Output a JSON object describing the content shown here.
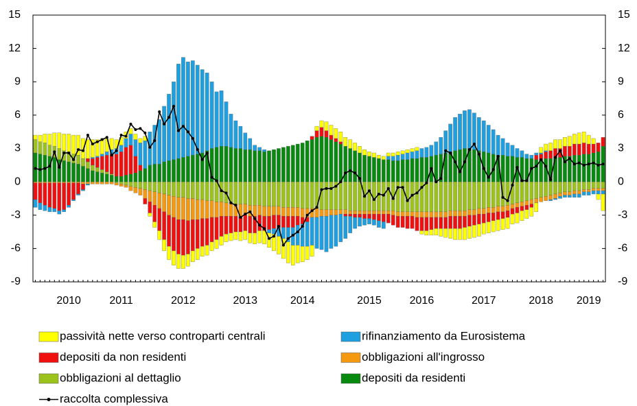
{
  "chart_data": {
    "type": "bar",
    "stacked": true,
    "categories": [
      null,
      null,
      null,
      null,
      null,
      null,
      null,
      "2010",
      null,
      null,
      null,
      null,
      null,
      null,
      null,
      null,
      null,
      null,
      "2011",
      null,
      null,
      null,
      null,
      null,
      null,
      null,
      null,
      null,
      null,
      null,
      null,
      "2012",
      null,
      null,
      null,
      null,
      null,
      null,
      null,
      null,
      null,
      null,
      null,
      null,
      "2013",
      null,
      null,
      null,
      null,
      null,
      null,
      null,
      null,
      null,
      null,
      null,
      "2014",
      null,
      null,
      null,
      null,
      null,
      null,
      null,
      null,
      null,
      null,
      null,
      null,
      null,
      "2015",
      null,
      null,
      null,
      null,
      null,
      null,
      null,
      null,
      null,
      null,
      "2016",
      null,
      null,
      null,
      null,
      null,
      null,
      null,
      null,
      null,
      null,
      null,
      null,
      "2017",
      null,
      null,
      null,
      null,
      null,
      null,
      null,
      null,
      null,
      null,
      null,
      "2018",
      null,
      null,
      null,
      null,
      null,
      null,
      null,
      null,
      null,
      "2019",
      null,
      null,
      null
    ],
    "ylim": [
      -9,
      15
    ],
    "yticks": [
      -9,
      -6,
      -3,
      0,
      3,
      6,
      9,
      12,
      15
    ],
    "series": [
      {
        "name": "passività nette verso controparti centrali",
        "color": "#ffff00",
        "values": [
          0.4,
          0.6,
          0.8,
          1.0,
          1.2,
          1.4,
          1.5,
          1.6,
          1.7,
          1.8,
          1.8,
          1.7,
          1.6,
          1.5,
          1.4,
          1.2,
          1.0,
          0.8,
          0.7,
          0.6,
          0.5,
          0.5,
          0.4,
          0.4,
          -0.3,
          -0.5,
          -0.8,
          -1.0,
          -1.2,
          -1.3,
          -1.3,
          -1.2,
          -1.1,
          -1.0,
          -1.0,
          -0.9,
          -0.9,
          -0.8,
          -0.8,
          -0.8,
          -0.7,
          -0.7,
          -0.7,
          -0.8,
          -0.8,
          -0.9,
          -1.0,
          -1.1,
          -1.2,
          -1.3,
          -1.5,
          -1.6,
          -1.8,
          -1.9,
          -1.8,
          -1.6,
          -1.4,
          -1.2,
          -1.0,
          0.4,
          0.6,
          0.8,
          0.9,
          0.9,
          0.9,
          0.8,
          0.8,
          0.7,
          0.6,
          0.5,
          0.4,
          0.4,
          0.3,
          0.3,
          0.3,
          0.3,
          0.3,
          0.3,
          0.3,
          0.3,
          0.3,
          -0.3,
          -0.4,
          -0.5,
          -0.6,
          -0.7,
          -0.8,
          -0.9,
          -1.0,
          -1.0,
          -1.1,
          -1.1,
          -1.1,
          -1.1,
          -1.0,
          -1.0,
          -1.0,
          -1.0,
          -1.0,
          -1.0,
          -0.9,
          -0.9,
          -0.9,
          -0.8,
          -0.8,
          -0.8,
          0.5,
          0.6,
          0.7,
          0.8,
          0.8,
          0.8,
          0.9,
          0.9,
          1.0,
          1.0,
          0.8,
          0.5,
          -0.5,
          -1.5
        ]
      },
      {
        "name": "rifinanziamento da Eurosistema",
        "color": "#1ea0e0",
        "values": [
          -0.7,
          -0.6,
          -0.5,
          -0.4,
          -0.3,
          -0.3,
          -0.2,
          -0.2,
          -0.1,
          -0.1,
          -0.1,
          -0.1,
          0.1,
          0.1,
          0.2,
          0.3,
          0.4,
          0.5,
          0.6,
          0.8,
          1.0,
          1.5,
          2.0,
          2.5,
          3.0,
          3.5,
          4.0,
          5.0,
          6.0,
          7.0,
          8.5,
          9.0,
          8.5,
          8.5,
          8.0,
          7.5,
          7.0,
          6.0,
          5.0,
          5.0,
          4.0,
          3.0,
          2.5,
          2.0,
          1.5,
          1.0,
          0.5,
          0.3,
          0.2,
          -0.3,
          -0.5,
          -0.8,
          -1.0,
          -1.3,
          -1.6,
          -1.8,
          -2.0,
          -2.2,
          -2.5,
          -2.8,
          -3.0,
          -3.2,
          -3.0,
          -2.8,
          -2.5,
          -2.0,
          -1.5,
          -1.0,
          -0.8,
          -0.6,
          -0.5,
          -0.5,
          -0.6,
          -0.6,
          0.3,
          0.4,
          0.5,
          0.5,
          0.6,
          0.6,
          0.7,
          0.8,
          0.9,
          1.0,
          1.2,
          1.5,
          2.0,
          2.5,
          3.0,
          3.2,
          3.4,
          3.5,
          3.3,
          3.0,
          2.8,
          2.5,
          2.2,
          1.8,
          1.5,
          1.2,
          1.0,
          0.8,
          0.6,
          0.4,
          0.3,
          0.2,
          0.1,
          0.1,
          -0.1,
          -0.1,
          -0.2,
          -0.2,
          -0.2,
          -0.3,
          -0.3,
          -0.3,
          -0.3,
          -0.3,
          -0.3,
          -0.3
        ]
      },
      {
        "name": "depositi da non residenti",
        "color": "#f01010",
        "values": [
          -1.5,
          -1.8,
          -2.0,
          -2.2,
          -2.3,
          -2.5,
          -2.4,
          -2.0,
          -1.5,
          -1.0,
          -0.5,
          0.3,
          0.6,
          0.9,
          1.2,
          1.5,
          1.8,
          2.0,
          2.2,
          2.5,
          2.6,
          1.5,
          0.5,
          -0.5,
          -1.0,
          -1.5,
          -2.0,
          -2.5,
          -2.8,
          -3.0,
          -3.1,
          -3.2,
          -3.0,
          -2.8,
          -2.6,
          -2.5,
          -2.4,
          -2.2,
          -2.0,
          -1.8,
          -1.6,
          -1.5,
          -1.4,
          -1.4,
          -1.4,
          -1.5,
          -1.5,
          -1.4,
          -1.3,
          -1.2,
          -1.2,
          -1.1,
          -1.0,
          -1.0,
          -1.0,
          -0.8,
          -0.6,
          -0.4,
          0.3,
          0.6,
          0.8,
          0.6,
          0.4,
          0.3,
          0.2,
          -0.2,
          -0.2,
          -0.3,
          -0.3,
          -0.4,
          -0.4,
          -0.5,
          -0.6,
          -0.7,
          -0.8,
          -0.9,
          -1.0,
          -1.0,
          -1.1,
          -1.1,
          -1.2,
          -1.2,
          -1.2,
          -1.1,
          -1.0,
          -1.0,
          -1.0,
          -1.1,
          -1.1,
          -1.1,
          -1.0,
          -1.0,
          -0.9,
          -0.9,
          -0.8,
          -0.8,
          -0.7,
          -0.7,
          -0.6,
          -0.6,
          -0.5,
          -0.5,
          -0.4,
          -0.4,
          -0.3,
          0.4,
          0.5,
          0.6,
          0.7,
          0.8,
          0.8,
          0.9,
          0.9,
          1.0,
          1.0,
          1.0,
          0.9,
          0.8,
          0.8,
          0.8
        ]
      },
      {
        "name": "obbligazioni all'ingrosso",
        "color": "#f59a10",
        "values": [
          -0.1,
          -0.1,
          -0.1,
          -0.1,
          -0.1,
          -0.1,
          -0.1,
          -0.1,
          -0.1,
          -0.1,
          -0.2,
          -0.2,
          -0.2,
          -0.2,
          -0.2,
          -0.2,
          -0.2,
          -0.2,
          -0.2,
          -0.2,
          -0.4,
          -0.5,
          -0.6,
          -0.8,
          -1.0,
          -1.2,
          -1.4,
          -1.6,
          -1.8,
          -1.9,
          -2.0,
          -2.0,
          -2.0,
          -1.9,
          -1.8,
          -1.7,
          -1.6,
          -1.5,
          -1.4,
          -1.3,
          -1.2,
          -1.2,
          -1.1,
          -1.1,
          -1.0,
          -1.0,
          -1.0,
          -0.9,
          -0.9,
          -0.9,
          -0.8,
          -0.8,
          -0.8,
          -0.8,
          -0.8,
          -0.8,
          -0.8,
          -0.8,
          -0.8,
          -0.8,
          -0.6,
          -0.6,
          -0.5,
          -0.5,
          -0.4,
          -0.4,
          -0.3,
          -0.3,
          -0.3,
          -0.3,
          -0.3,
          -0.3,
          -0.3,
          -0.3,
          -0.3,
          -0.4,
          -0.4,
          -0.4,
          -0.4,
          -0.4,
          -0.5,
          -0.5,
          -0.5,
          -0.5,
          -0.5,
          -0.5,
          -0.5,
          -0.5,
          -0.5,
          -0.5,
          -0.5,
          -0.5,
          -0.5,
          -0.5,
          -0.5,
          -0.5,
          -0.5,
          -0.5,
          -0.5,
          -0.5,
          -0.4,
          -0.4,
          -0.4,
          -0.4,
          -0.4,
          -0.4,
          -0.4,
          -0.4,
          -0.4,
          -0.4,
          -0.3,
          -0.3,
          -0.3,
          -0.3,
          -0.3,
          -0.2,
          -0.2,
          -0.2,
          -0.2,
          -0.2
        ]
      },
      {
        "name": "obbligazioni al dettaglio",
        "color": "#9cc31c",
        "values": [
          1.2,
          1.1,
          1.1,
          1.0,
          1.0,
          1.0,
          0.9,
          0.9,
          0.8,
          0.8,
          0.7,
          0.6,
          0.5,
          0.4,
          0.3,
          0.2,
          0.1,
          -0.1,
          -0.2,
          -0.3,
          -0.4,
          -0.5,
          -0.6,
          -0.7,
          -0.8,
          -0.9,
          -1.0,
          -1.1,
          -1.2,
          -1.3,
          -1.4,
          -1.4,
          -1.5,
          -1.5,
          -1.6,
          -1.6,
          -1.7,
          -1.7,
          -1.8,
          -1.8,
          -1.9,
          -1.9,
          -2.0,
          -2.0,
          -2.0,
          -2.1,
          -2.1,
          -2.1,
          -2.2,
          -2.2,
          -2.2,
          -2.2,
          -2.3,
          -2.3,
          -2.3,
          -2.3,
          -2.4,
          -2.4,
          -2.4,
          -2.4,
          -2.5,
          -2.5,
          -2.5,
          -2.5,
          -2.5,
          -2.5,
          -2.6,
          -2.6,
          -2.6,
          -2.6,
          -2.6,
          -2.6,
          -2.6,
          -2.6,
          -2.6,
          -2.6,
          -2.7,
          -2.7,
          -2.7,
          -2.7,
          -2.7,
          -2.7,
          -2.7,
          -2.7,
          -2.7,
          -2.7,
          -2.7,
          -2.6,
          -2.6,
          -2.6,
          -2.6,
          -2.5,
          -2.5,
          -2.4,
          -2.4,
          -2.3,
          -2.3,
          -2.2,
          -2.2,
          -2.1,
          -2.0,
          -1.9,
          -1.8,
          -1.7,
          -1.6,
          -1.5,
          -1.4,
          -1.3,
          -1.2,
          -1.1,
          -1.0,
          -0.9,
          -0.9,
          -0.8,
          -0.8,
          -0.7,
          -0.7,
          -0.6,
          -0.6,
          -0.6
        ]
      },
      {
        "name": "depositi da residenti",
        "color": "#088a10",
        "values": [
          2.6,
          2.5,
          2.4,
          2.3,
          2.2,
          2.0,
          1.9,
          1.8,
          1.7,
          1.6,
          1.4,
          1.2,
          1.0,
          0.9,
          0.8,
          0.7,
          0.6,
          0.5,
          0.5,
          0.6,
          0.7,
          0.8,
          1.0,
          1.2,
          1.5,
          1.6,
          1.6,
          1.8,
          1.9,
          2.0,
          2.1,
          2.2,
          2.3,
          2.4,
          2.5,
          2.6,
          2.8,
          3.0,
          3.1,
          3.2,
          3.2,
          3.1,
          3.0,
          3.0,
          2.9,
          2.9,
          2.8,
          2.8,
          2.7,
          2.8,
          2.9,
          3.0,
          3.1,
          3.2,
          3.3,
          3.4,
          3.5,
          3.7,
          3.8,
          4.0,
          4.1,
          4.0,
          3.8,
          3.6,
          3.4,
          3.2,
          3.0,
          2.8,
          2.6,
          2.4,
          2.3,
          2.2,
          2.1,
          2.0,
          2.0,
          1.9,
          1.9,
          2.0,
          2.0,
          2.1,
          2.1,
          2.2,
          2.2,
          2.3,
          2.4,
          2.5,
          2.6,
          2.7,
          2.8,
          2.9,
          3.0,
          3.0,
          2.9,
          2.8,
          2.7,
          2.6,
          2.5,
          2.4,
          2.4,
          2.3,
          2.3,
          2.2,
          2.2,
          2.1,
          2.1,
          2.0,
          2.0,
          2.1,
          2.1,
          2.2,
          2.2,
          2.3,
          2.3,
          2.4,
          2.4,
          2.5,
          2.5,
          2.6,
          2.7,
          3.2
        ]
      },
      {
        "name": "raccolta complessiva",
        "type": "line",
        "color": "#000000",
        "values": [
          1.2,
          1.1,
          1.2,
          1.4,
          2.7,
          1.3,
          2.6,
          2.6,
          2.0,
          2.9,
          2.8,
          4.2,
          3.4,
          3.6,
          3.8,
          4.0,
          2.4,
          2.8,
          4.2,
          4.1,
          5.2,
          4.7,
          4.8,
          4.4,
          3.1,
          3.7,
          6.3,
          5.2,
          5.8,
          6.8,
          4.6,
          5.0,
          4.5,
          3.9,
          2.9,
          2.0,
          2.6,
          0.4,
          0.1,
          -0.8,
          -1.0,
          -1.9,
          -2.1,
          -3.2,
          -2.9,
          -2.7,
          -3.3,
          -3.9,
          -4.2,
          -5.1,
          -4.9,
          -4.0,
          -5.7,
          -5.1,
          -4.8,
          -4.5,
          -4.0,
          -3.0,
          -2.6,
          -2.3,
          -0.7,
          -0.6,
          -0.6,
          -0.4,
          0.0,
          0.8,
          1.0,
          0.8,
          0.3,
          -1.3,
          -0.8,
          -1.6,
          -1.1,
          -1.2,
          -0.6,
          -1.5,
          -0.5,
          -0.5,
          -1.7,
          -1.2,
          -1.0,
          -0.5,
          -0.1,
          1.2,
          0.0,
          0.3,
          2.8,
          2.6,
          1.8,
          0.9,
          1.8,
          2.9,
          3.4,
          2.5,
          1.2,
          0.4,
          1.1,
          2.3,
          -1.4,
          -1.7,
          -0.3,
          1.3,
          0.1,
          0.1,
          1.2,
          1.4,
          2.0,
          1.4,
          0.2,
          2.2,
          2.8,
          1.8,
          2.1,
          1.6,
          1.7,
          1.5,
          1.6,
          1.7,
          1.5,
          1.6
        ]
      }
    ]
  }
}
